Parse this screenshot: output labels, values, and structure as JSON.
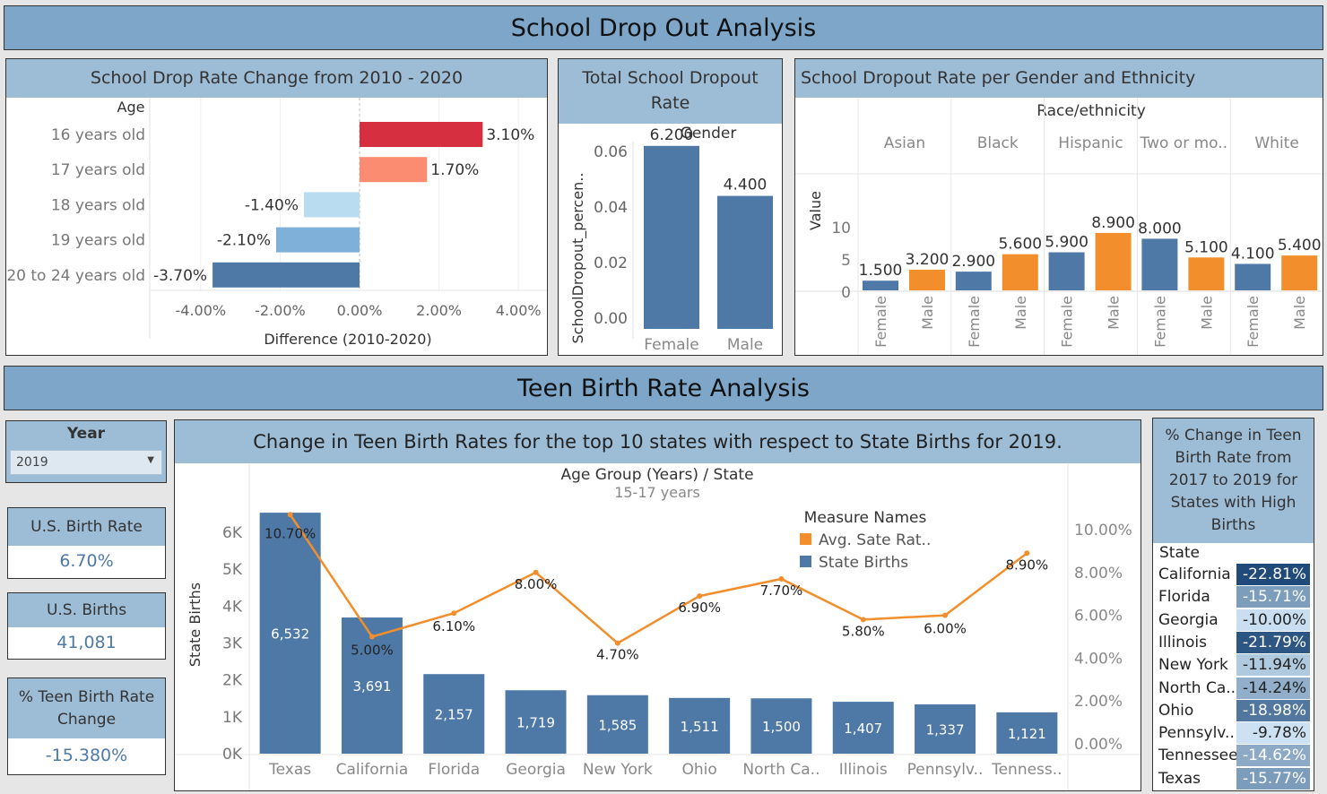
{
  "dropout_banner": "School Drop Out Analysis",
  "teen_banner": "Teen Birth Rate Analysis",
  "colors": {
    "banner": "#7da6c9",
    "panel_header": "#9dbcd6",
    "blue": "#4e79a7",
    "orange": "#f28e2b",
    "red": "#d62f3f"
  },
  "filter": {
    "title": "Year",
    "value": "2019"
  },
  "kpis": [
    {
      "title": "U.S. Birth Rate",
      "value": "6.70%"
    },
    {
      "title": "U.S. Births",
      "value": "41,081"
    },
    {
      "title": "% Teen Birth Rate Change",
      "value": "-15.380%"
    }
  ],
  "table": {
    "title": "% Change in Teen Birth Rate from 2017 to 2019 for States with High Births",
    "header": "State",
    "rows": [
      {
        "state": "California",
        "change": "-22.81%",
        "value": -22.81
      },
      {
        "state": "Florida",
        "change": "-15.71%",
        "value": -15.71
      },
      {
        "state": "Georgia",
        "change": "-10.00%",
        "value": -10.0
      },
      {
        "state": "Illinois",
        "change": "-21.79%",
        "value": -21.79
      },
      {
        "state": "New York",
        "change": "-11.94%",
        "value": -11.94
      },
      {
        "state": "North Ca..",
        "change": "-14.24%",
        "value": -14.24
      },
      {
        "state": "Ohio",
        "change": "-18.98%",
        "value": -18.98
      },
      {
        "state": "Pennsylv..",
        "change": "-9.78%",
        "value": -9.78
      },
      {
        "state": "Tennessee",
        "change": "-14.62%",
        "value": -14.62
      },
      {
        "state": "Texas",
        "change": "-15.77%",
        "value": -15.77
      }
    ]
  },
  "chart_data": [
    {
      "type": "bar",
      "orientation": "horizontal",
      "title": "School Drop Rate Change from 2010 - 2020",
      "row_header": "Age",
      "xlabel": "Difference (2010-2020)",
      "categories": [
        "16 years old",
        "17 years old",
        "18 years old",
        "19 years old",
        "20 to 24 years old"
      ],
      "values": [
        3.1,
        1.7,
        -1.4,
        -2.1,
        -3.7
      ],
      "labels": [
        "3.10%",
        "1.70%",
        "-1.40%",
        "-2.10%",
        "-3.70%"
      ],
      "bar_colors": [
        "#d62f3f",
        "#fb8c72",
        "#b9dcf0",
        "#7fb0d9",
        "#4e79a7"
      ],
      "xlim": [
        -5,
        5
      ],
      "xticks": [
        -4,
        -2,
        0,
        2,
        4
      ],
      "xtick_labels": [
        "-4.00%",
        "-2.00%",
        "0.00%",
        "2.00%",
        "4.00%"
      ]
    },
    {
      "type": "bar",
      "title": "Total School Dropout Rate",
      "column_header": "Gender",
      "ylabel": "SchoolDropout_percen..",
      "categories": [
        "Female",
        "Male"
      ],
      "values": [
        0.062,
        0.044
      ],
      "labels": [
        "6.200",
        "4.400"
      ],
      "ylim": [
        0,
        0.07
      ],
      "yticks": [
        0,
        0.02,
        0.04,
        0.06
      ],
      "ytick_labels": [
        "0.00",
        "0.02",
        "0.04",
        "0.06"
      ]
    },
    {
      "type": "bar",
      "title": "School Dropout Rate per Gender and Ethnicity",
      "column_header": "Race/ethnicity",
      "ylabel": "Value",
      "groups": [
        "Asian",
        "Black",
        "Hispanic",
        "Two or mo..",
        "White"
      ],
      "subcategories": [
        "Female",
        "Male"
      ],
      "values": [
        [
          1.5,
          3.2
        ],
        [
          2.9,
          5.6
        ],
        [
          5.9,
          8.9
        ],
        [
          8.0,
          5.1
        ],
        [
          4.1,
          5.4
        ]
      ],
      "labels": [
        [
          "1.500",
          "3.200"
        ],
        [
          "2.900",
          "5.600"
        ],
        [
          "5.900",
          "8.900"
        ],
        [
          "8.000",
          "5.100"
        ],
        [
          "4.100",
          "5.400"
        ]
      ],
      "ylim": [
        0,
        11
      ],
      "yticks": [
        0,
        5,
        10
      ],
      "ytick_labels": [
        "0",
        "5",
        "10"
      ]
    },
    {
      "type": "bar",
      "title": "Change in Teen Birth Rates for the top 10 states with respect to State Births for 2019.",
      "header": "Age Group (Years)  /  State",
      "subheader": "15-17 years",
      "ylabel": "State Births",
      "legend_title": "Measure Names",
      "legend_position": "top-right",
      "categories": [
        "Texas",
        "California",
        "Florida",
        "Georgia",
        "New York",
        "Ohio",
        "North Ca..",
        "Illinois",
        "Pennsylv..",
        "Tenness.."
      ],
      "series": [
        {
          "name": "State Births",
          "type": "bar",
          "values": [
            6532,
            3691,
            2157,
            1719,
            1585,
            1511,
            1500,
            1407,
            1337,
            1121
          ],
          "labels": [
            "6,532",
            "3,691",
            "2,157",
            "1,719",
            "1,585",
            "1,511",
            "1,500",
            "1,407",
            "1,337",
            "1,121"
          ]
        },
        {
          "name": "Avg. Sate Rat..",
          "type": "line",
          "axis": "right",
          "values": [
            10.7,
            5.0,
            6.1,
            8.0,
            4.7,
            6.9,
            7.7,
            5.8,
            6.0,
            8.9
          ],
          "labels": [
            "10.70%",
            "5.00%",
            "6.10%",
            "8.00%",
            "4.70%",
            "6.90%",
            "7.70%",
            "5.80%",
            "6.00%",
            "8.90%"
          ]
        }
      ],
      "ylim": [
        0,
        6532
      ],
      "yticks": [
        0,
        1000,
        2000,
        3000,
        4000,
        5000,
        6000
      ],
      "ytick_labels": [
        "0K",
        "1K",
        "2K",
        "3K",
        "4K",
        "5K",
        "6K"
      ],
      "y2lim": [
        0,
        10.7
      ],
      "y2ticks": [
        0,
        2,
        4,
        6,
        8,
        10
      ],
      "y2tick_labels": [
        "0.00%",
        "2.00%",
        "4.00%",
        "6.00%",
        "8.00%",
        "10.00%"
      ]
    }
  ]
}
